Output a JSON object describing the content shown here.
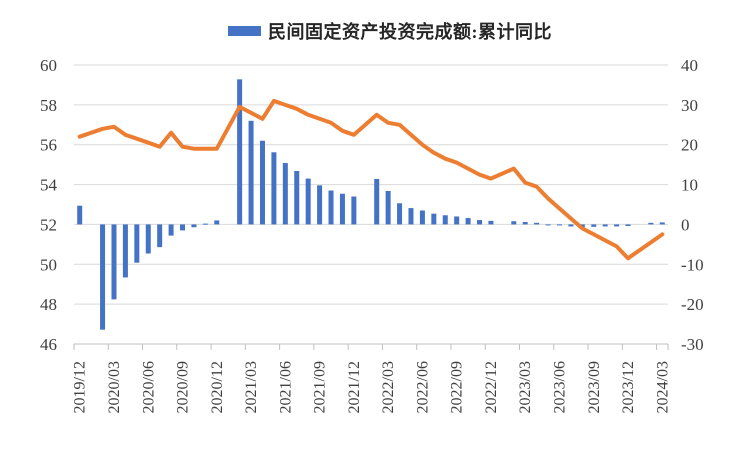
{
  "chart_data": {
    "type": "combo",
    "legend": {
      "position": "top",
      "entries": [
        {
          "label": "民间固定资产投资完成额:累计同比",
          "marker": "bar",
          "color": "#4472C4"
        }
      ]
    },
    "x": [
      "2019/12",
      "2020/02",
      "2020/03",
      "2020/04",
      "2020/05",
      "2020/06",
      "2020/07",
      "2020/08",
      "2020/09",
      "2020/10",
      "2020/11",
      "2020/12",
      "2021/02",
      "2021/03",
      "2021/04",
      "2021/05",
      "2021/06",
      "2021/07",
      "2021/08",
      "2021/09",
      "2021/10",
      "2021/11",
      "2021/12",
      "2022/02",
      "2022/03",
      "2022/04",
      "2022/05",
      "2022/06",
      "2022/07",
      "2022/08",
      "2022/09",
      "2022/10",
      "2022/11",
      "2022/12",
      "2023/02",
      "2023/03",
      "2023/04",
      "2023/05",
      "2023/06",
      "2023/07",
      "2023/08",
      "2023/09",
      "2023/10",
      "2023/11",
      "2023/12",
      "2024/02",
      "2024/03"
    ],
    "x_tick_labels": [
      "2019/12",
      "2020/03",
      "2020/06",
      "2020/09",
      "2020/12",
      "2021/03",
      "2021/06",
      "2021/09",
      "2021/12",
      "2022/03",
      "2022/06",
      "2022/09",
      "2022/12",
      "2023/03",
      "2023/06",
      "2023/09",
      "2023/12",
      "2024/03"
    ],
    "series": [
      {
        "name": "民间固定资产投资完成额:累计同比",
        "type": "bar",
        "axis": "right",
        "color": "#4472C4",
        "values": [
          4.7,
          -26.4,
          -18.8,
          -13.3,
          -9.6,
          -7.3,
          -5.7,
          -2.8,
          -1.5,
          -0.7,
          0.2,
          1.0,
          36.4,
          26.0,
          21.0,
          18.1,
          15.4,
          13.4,
          11.5,
          9.8,
          8.5,
          7.7,
          7.0,
          11.4,
          8.4,
          5.3,
          4.1,
          3.5,
          2.7,
          2.3,
          2.0,
          1.6,
          1.1,
          0.9,
          0.8,
          0.6,
          0.4,
          -0.1,
          -0.2,
          -0.5,
          -0.7,
          -0.6,
          -0.5,
          -0.5,
          -0.4,
          0.4,
          0.5
        ]
      },
      {
        "name": "",
        "type": "line",
        "axis": "left",
        "color": "#ED7D31",
        "values": [
          56.4,
          56.8,
          56.9,
          56.5,
          56.3,
          56.1,
          55.9,
          56.6,
          55.9,
          55.8,
          55.8,
          55.8,
          57.9,
          57.6,
          57.3,
          58.2,
          58.0,
          57.8,
          57.5,
          57.3,
          57.1,
          56.7,
          56.5,
          57.5,
          57.1,
          57.0,
          56.5,
          56.0,
          55.6,
          55.3,
          55.1,
          54.8,
          54.5,
          54.3,
          54.8,
          54.1,
          53.9,
          53.3,
          52.8,
          52.3,
          51.8,
          51.5,
          51.2,
          50.9,
          50.3,
          51.1,
          51.5
        ]
      }
    ],
    "left_axis": {
      "min": 46,
      "max": 60,
      "ticks": [
        60,
        58,
        56,
        54,
        52,
        50,
        48,
        46
      ]
    },
    "right_axis": {
      "min": -30,
      "max": 40,
      "ticks": [
        40,
        30,
        20,
        10,
        0,
        -10,
        -20,
        -30
      ]
    },
    "grid": true,
    "colors": {
      "grid": "#D9D9D9",
      "axis": "#BFBFBF",
      "tick_text": "#404040",
      "background": "#FFFFFF"
    }
  }
}
